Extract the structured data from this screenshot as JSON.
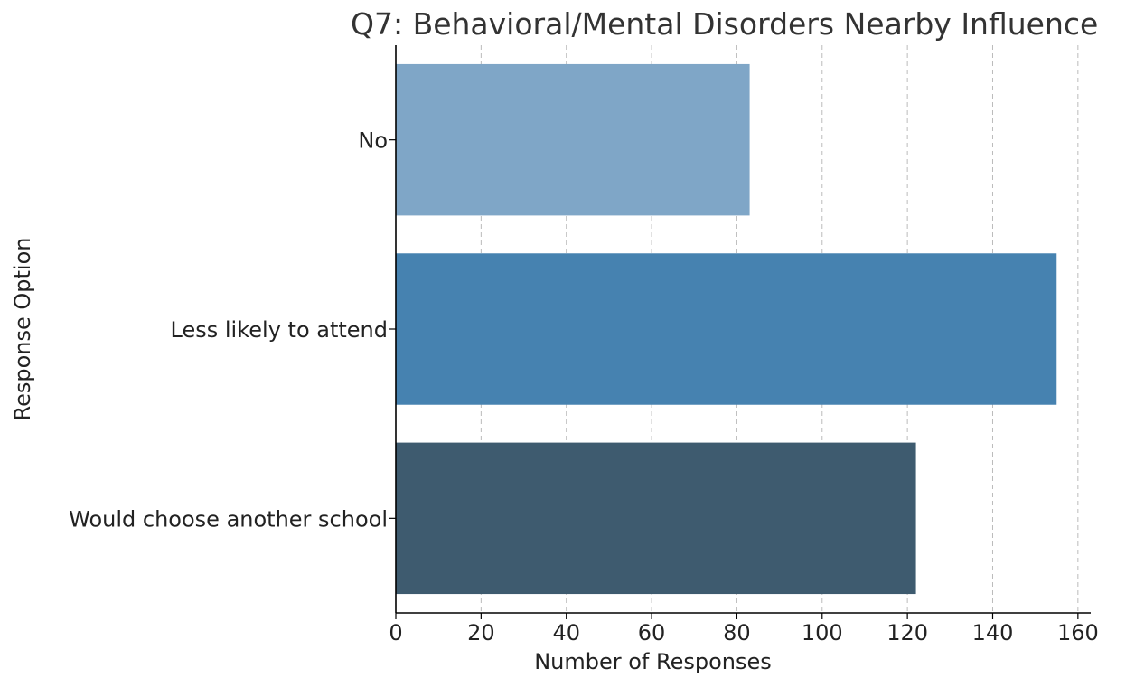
{
  "chart_data": {
    "type": "bar",
    "orientation": "horizontal",
    "title": "Q7: Behavioral/Mental Disorders Nearby Influence",
    "xlabel": "Number of Responses",
    "ylabel": "Response Option",
    "categories": [
      "No",
      "Less likely to attend",
      "Would choose another school"
    ],
    "values": [
      83,
      155,
      122
    ],
    "colors": [
      "#7fa6c7",
      "#4682b0",
      "#3e5b6f"
    ],
    "xlim": [
      0,
      163
    ],
    "xticks": [
      0,
      20,
      40,
      60,
      80,
      100,
      120,
      140,
      160
    ],
    "grid": "x-dashed",
    "legend": "none"
  }
}
